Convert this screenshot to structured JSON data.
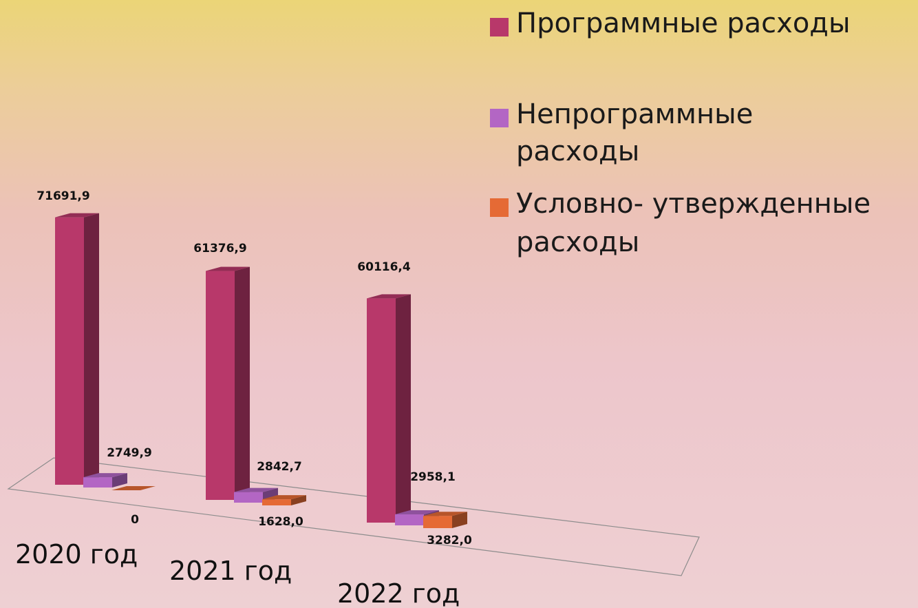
{
  "chart_data": {
    "type": "bar",
    "title": "",
    "xlabel": "",
    "ylabel": "",
    "categories": [
      "2020 год",
      "2021 год",
      "2022 год"
    ],
    "series": [
      {
        "name": "Программные расходы",
        "values": [
          71691.9,
          61376.9,
          60116.4
        ],
        "labels": [
          "71691,9",
          "61376,9",
          "60116,4"
        ],
        "color": "#b8386a"
      },
      {
        "name": "Непрограммные расходы",
        "values": [
          2749.9,
          2842.7,
          2958.1
        ],
        "labels": [
          "2749,9",
          "2842,7",
          "2958,1"
        ],
        "color": "#b366c4"
      },
      {
        "name": "Условно- утвержденные расходы",
        "values": [
          0,
          1628.0,
          3282.0
        ],
        "labels": [
          "0",
          "1628,0",
          "3282,0"
        ],
        "color": "#e56a35"
      }
    ],
    "ylim": [
      0,
      72000
    ],
    "grid": false,
    "legend_position": "top-right",
    "three_d": true
  },
  "legend": {
    "items": [
      {
        "lines": [
          "Программные расходы"
        ]
      },
      {
        "lines": [
          "Непрограммные",
          "расходы"
        ]
      },
      {
        "lines": [
          "Условно- утвержденные",
          "расходы"
        ]
      }
    ]
  }
}
